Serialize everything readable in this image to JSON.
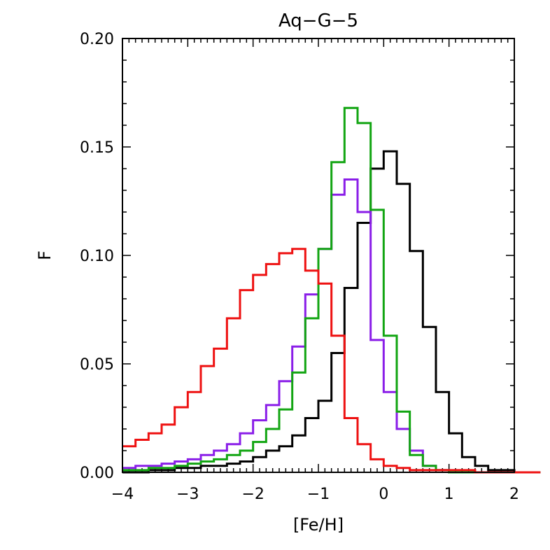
{
  "chart_data": {
    "type": "line",
    "step": true,
    "title": "Aq−G−5",
    "xlabel": "[Fe/H]",
    "ylabel": "F",
    "xlim": [
      -4,
      2
    ],
    "ylim": [
      0,
      0.2
    ],
    "xticks": [
      -4,
      -3,
      -2,
      -1,
      0,
      1,
      2
    ],
    "xtick_labels": [
      "−4",
      "−3",
      "−2",
      "−1",
      "0",
      "1",
      "2"
    ],
    "yticks": [
      0,
      0.05,
      0.1,
      0.15,
      0.2
    ],
    "ytick_labels": [
      "0.00",
      "0.05",
      "0.10",
      "0.15",
      "0.20"
    ],
    "bin_width": 0.2,
    "bin_start": -4,
    "series": [
      {
        "name": "black",
        "color": "#000000",
        "values": [
          0.0,
          0.0,
          0.001,
          0.001,
          0.002,
          0.002,
          0.003,
          0.003,
          0.004,
          0.005,
          0.007,
          0.01,
          0.012,
          0.017,
          0.025,
          0.033,
          0.055,
          0.085,
          0.115,
          0.14,
          0.148,
          0.133,
          0.102,
          0.067,
          0.037,
          0.018,
          0.007,
          0.003,
          0.001,
          0.001,
          0.0,
          0.0
        ]
      },
      {
        "name": "purple",
        "color": "#8a1ee8",
        "values": [
          0.002,
          0.003,
          0.003,
          0.004,
          0.005,
          0.006,
          0.008,
          0.01,
          0.013,
          0.018,
          0.024,
          0.031,
          0.042,
          0.058,
          0.082,
          0.103,
          0.128,
          0.135,
          0.12,
          0.061,
          0.037,
          0.02,
          0.01,
          0.003,
          0.001,
          0.0,
          0.0,
          0.0,
          0.0,
          0.0,
          0.0,
          0.0
        ]
      },
      {
        "name": "green",
        "color": "#12a512",
        "values": [
          0.001,
          0.001,
          0.002,
          0.002,
          0.003,
          0.004,
          0.005,
          0.006,
          0.008,
          0.01,
          0.014,
          0.02,
          0.029,
          0.046,
          0.071,
          0.103,
          0.143,
          0.168,
          0.161,
          0.121,
          0.063,
          0.028,
          0.008,
          0.003,
          0.001,
          0.0,
          0.0,
          0.0,
          0.0,
          0.0,
          0.0,
          0.0
        ]
      },
      {
        "name": "red",
        "color": "#ee1111",
        "values": [
          0.012,
          0.015,
          0.018,
          0.022,
          0.03,
          0.037,
          0.049,
          0.057,
          0.071,
          0.084,
          0.091,
          0.096,
          0.101,
          0.103,
          0.093,
          0.087,
          0.063,
          0.025,
          0.013,
          0.006,
          0.003,
          0.002,
          0.001,
          0.001,
          0.001,
          0.001,
          0.001,
          0.0,
          0.0,
          0.0,
          0.0,
          0.0
        ]
      }
    ]
  }
}
